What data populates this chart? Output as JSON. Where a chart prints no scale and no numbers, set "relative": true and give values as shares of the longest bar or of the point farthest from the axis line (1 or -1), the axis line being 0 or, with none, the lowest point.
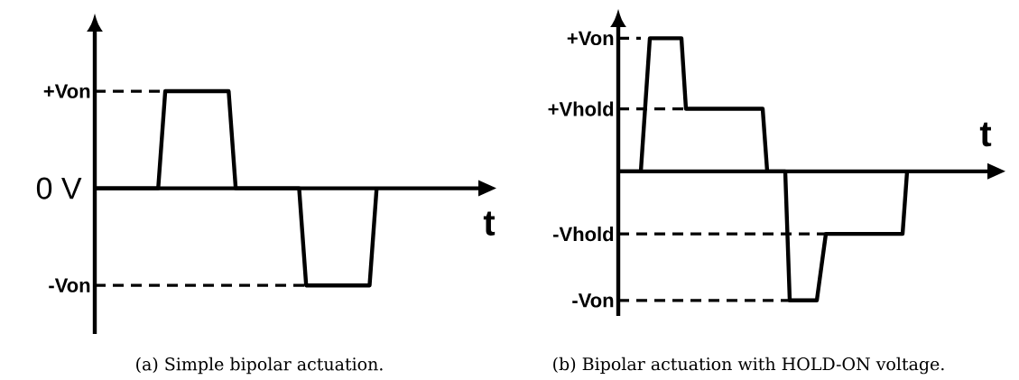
{
  "chart_data": [
    {
      "type": "line",
      "title": "(a) Simple bipolar actuation.",
      "xlabel": "t",
      "relative": true,
      "categories": [
        null,
        null,
        null,
        null,
        null,
        null,
        null,
        null,
        null,
        null,
        null,
        null,
        null,
        null,
        null,
        null,
        null,
        null,
        null,
        null,
        null,
        null,
        null,
        null,
        null,
        null,
        null,
        null,
        null,
        null,
        null,
        null,
        null,
        null,
        null,
        null,
        null,
        null,
        null,
        null,
        null
      ],
      "annotations": [
        "0 V"
      ],
      "series": [
        {
          "color": "#000000",
          "values": [
            0,
            0,
            0,
            0,
            0,
            0,
            0,
            0,
            0,
            0,
            1,
            1,
            1,
            1,
            1,
            1,
            1,
            1,
            1,
            1,
            0,
            0,
            0,
            0,
            0,
            0,
            0,
            0,
            0,
            0,
            -1,
            -1,
            -1,
            -1,
            -1,
            -1,
            -1,
            -1,
            -1,
            -1,
            0
          ]
        },
        {
          "name": "+Von",
          "line_style": "dashed",
          "color": "#000000",
          "values": [
            1,
            1,
            1,
            1,
            1,
            1,
            1,
            1,
            1,
            1,
            1,
            null,
            null,
            null,
            null,
            null,
            null,
            null,
            null,
            null,
            null,
            null,
            null,
            null,
            null,
            null,
            null,
            null,
            null,
            null,
            null,
            null,
            null,
            null,
            null,
            null,
            null,
            null,
            null,
            null,
            null
          ]
        },
        {
          "name": "-Von",
          "line_style": "dashed",
          "color": "#000000",
          "values": [
            -1,
            -1,
            -1,
            -1,
            -1,
            -1,
            -1,
            -1,
            -1,
            -1,
            -1,
            -1,
            -1,
            -1,
            -1,
            -1,
            -1,
            -1,
            -1,
            -1,
            -1,
            -1,
            -1,
            -1,
            -1,
            -1,
            -1,
            -1,
            -1,
            -1,
            -1,
            null,
            null,
            null,
            null,
            null,
            null,
            null,
            null,
            null,
            null
          ]
        }
      ]
    },
    {
      "type": "line",
      "title": "(b) Bipolar actuation with HOLD-ON voltage.",
      "xlabel": "t",
      "relative": true,
      "categories": [
        null,
        null,
        null,
        null,
        null,
        null,
        null,
        null,
        null,
        null,
        null,
        null,
        null,
        null,
        null,
        null,
        null,
        null,
        null,
        null,
        null,
        null,
        null,
        null,
        null,
        null,
        null,
        null,
        null,
        null,
        null,
        null,
        null,
        null,
        null,
        null,
        null,
        null,
        null,
        null,
        null,
        null,
        null,
        null,
        null,
        null,
        null,
        null,
        null,
        null,
        null,
        null,
        null,
        null,
        null,
        null,
        null,
        null,
        null,
        null,
        null,
        null,
        null,
        null,
        null
      ],
      "series": [
        {
          "color": "#000000",
          "values": [
            0,
            0,
            0,
            0,
            0,
            0,
            0.5,
            1,
            1,
            1,
            1,
            1,
            1,
            1,
            1,
            0.47,
            0.47,
            0.47,
            0.47,
            0.47,
            0.47,
            0.47,
            0.47,
            0.47,
            0.47,
            0.47,
            0.47,
            0.47,
            0.47,
            0.47,
            0.47,
            0.47,
            0.47,
            0,
            0,
            0,
            0,
            0,
            -0.97,
            -0.97,
            -0.97,
            -0.97,
            -0.97,
            -0.97,
            -0.97,
            -0.72,
            -0.47,
            -0.47,
            -0.47,
            -0.47,
            -0.47,
            -0.47,
            -0.47,
            -0.47,
            -0.47,
            -0.47,
            -0.47,
            -0.47,
            -0.47,
            -0.47,
            -0.47,
            -0.47,
            -0.47,
            -0.47,
            0
          ]
        },
        {
          "name": "+Von",
          "line_style": "dashed",
          "color": "#000000",
          "values": [
            1,
            1,
            1,
            1,
            1,
            1,
            null,
            null,
            null,
            null,
            null,
            null,
            null,
            null,
            null,
            null,
            null,
            null,
            null,
            null,
            null,
            null,
            null,
            null,
            null,
            null,
            null,
            null,
            null,
            null,
            null,
            null,
            null,
            null,
            null,
            null,
            null,
            null,
            null,
            null,
            null,
            null,
            null,
            null,
            null,
            null,
            null,
            null,
            null,
            null,
            null,
            null,
            null,
            null,
            null,
            null,
            null,
            null,
            null,
            null,
            null,
            null,
            null,
            null,
            null
          ]
        },
        {
          "name": "+Vhold",
          "line_style": "dashed",
          "color": "#000000",
          "values": [
            0.47,
            0.47,
            0.47,
            0.47,
            0.47,
            0.47,
            0.47,
            0.47,
            0.47,
            0.47,
            0.47,
            0.47,
            0.47,
            0.47,
            0.47,
            0.47,
            null,
            null,
            null,
            null,
            null,
            null,
            null,
            null,
            null,
            null,
            null,
            null,
            null,
            null,
            null,
            null,
            null,
            null,
            null,
            null,
            null,
            null,
            null,
            null,
            null,
            null,
            null,
            null,
            null,
            null,
            null,
            null,
            null,
            null,
            null,
            null,
            null,
            null,
            null,
            null,
            null,
            null,
            null,
            null,
            null,
            null,
            null,
            null,
            null
          ]
        },
        {
          "name": "-Vhold",
          "line_style": "dashed",
          "color": "#000000",
          "values": [
            -0.47,
            -0.47,
            -0.47,
            -0.47,
            -0.47,
            -0.47,
            -0.47,
            -0.47,
            -0.47,
            -0.47,
            -0.47,
            -0.47,
            -0.47,
            -0.47,
            -0.47,
            -0.47,
            -0.47,
            -0.47,
            -0.47,
            -0.47,
            -0.47,
            -0.47,
            -0.47,
            -0.47,
            -0.47,
            -0.47,
            -0.47,
            -0.47,
            -0.47,
            -0.47,
            -0.47,
            -0.47,
            -0.47,
            -0.47,
            -0.47,
            -0.47,
            -0.47,
            -0.47,
            -0.47,
            -0.47,
            -0.47,
            -0.47,
            -0.47,
            -0.47,
            -0.47,
            -0.47,
            -0.47,
            null,
            null,
            null,
            null,
            null,
            null,
            null,
            null,
            null,
            null,
            null,
            null,
            null,
            null,
            null,
            null,
            null,
            null
          ]
        },
        {
          "name": "-Von",
          "line_style": "dashed",
          "color": "#000000",
          "values": [
            -0.97,
            -0.97,
            -0.97,
            -0.97,
            -0.97,
            -0.97,
            -0.97,
            -0.97,
            -0.97,
            -0.97,
            -0.97,
            -0.97,
            -0.97,
            -0.97,
            -0.97,
            -0.97,
            -0.97,
            -0.97,
            -0.97,
            -0.97,
            -0.97,
            -0.97,
            -0.97,
            -0.97,
            -0.97,
            -0.97,
            -0.97,
            -0.97,
            -0.97,
            -0.97,
            -0.97,
            -0.97,
            -0.97,
            -0.97,
            -0.97,
            -0.97,
            -0.97,
            -0.97,
            -0.97,
            null,
            null,
            null,
            null,
            null,
            null,
            null,
            null,
            null,
            null,
            null,
            null,
            null,
            null,
            null,
            null,
            null,
            null,
            null,
            null,
            null,
            null,
            null,
            null,
            null,
            null
          ]
        }
      ]
    }
  ]
}
